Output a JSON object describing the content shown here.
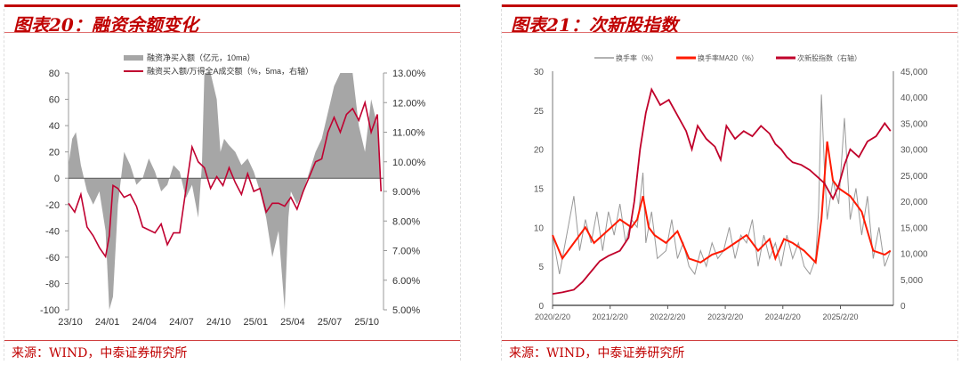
{
  "left": {
    "title": "图表20：融资余额变化",
    "source": "来源：WIND，中泰证券研究所"
  },
  "right": {
    "title": "图表21：次新股指数",
    "source": "来源：WIND，中泰证券研究所"
  },
  "chart_data": [
    {
      "type": "area+line",
      "title": "融资余额变化",
      "legend": [
        "融资净买入额（亿元，10ma）",
        "融资买入额/万得全A成交额（%，5ma，右轴）"
      ],
      "x_ticks": [
        "23/10",
        "24/01",
        "24/04",
        "24/07",
        "24/10",
        "25/01",
        "25/04",
        "25/07",
        "25/10"
      ],
      "x_tick_months": [
        0,
        3,
        6,
        9,
        12,
        15,
        18,
        21,
        24
      ],
      "y_left": {
        "range": [
          -100,
          80
        ],
        "ticks": [
          -100,
          -80,
          -60,
          -40,
          -20,
          0,
          20,
          40,
          60,
          80
        ]
      },
      "y_right": {
        "range": [
          5,
          13
        ],
        "ticks": [
          "5.00%",
          "6.00%",
          "7.00%",
          "8.00%",
          "9.00%",
          "10.00%",
          "11.00%",
          "12.00%",
          "13.00%"
        ]
      },
      "x_range_months": [
        0,
        25.5
      ],
      "series": [
        {
          "name": "融资净买入额（亿元，10ma）",
          "axis": "left",
          "color": "#a6a6a6",
          "x": [
            0,
            0.3,
            0.6,
            1,
            1.5,
            2,
            2.5,
            3,
            3.3,
            3.6,
            4,
            4.5,
            5,
            5.5,
            6,
            6.5,
            7,
            7.5,
            8,
            8.5,
            9,
            9.5,
            10,
            10.5,
            10.8,
            11,
            11.5,
            12,
            12.3,
            12.6,
            13,
            13.5,
            14,
            14.5,
            15,
            15.5,
            16,
            16.5,
            17,
            17.5,
            17.8,
            18,
            18.5,
            19,
            19.5,
            20,
            20.5,
            21,
            21.5,
            22,
            22.5,
            23,
            23.5,
            24,
            24.5,
            25,
            25.3
          ],
          "y": [
            10,
            30,
            35,
            10,
            -10,
            -20,
            -10,
            -40,
            -100,
            -90,
            -20,
            20,
            10,
            -5,
            0,
            15,
            5,
            -10,
            -5,
            10,
            5,
            -15,
            -5,
            -30,
            10,
            80,
            80,
            60,
            20,
            30,
            25,
            20,
            10,
            15,
            5,
            -10,
            -30,
            -60,
            -40,
            -100,
            -30,
            -10,
            -20,
            -10,
            5,
            20,
            30,
            50,
            70,
            80,
            80,
            80,
            40,
            20,
            60,
            40,
            -10
          ]
        },
        {
          "name": "融资买入额/万得全A成交额（%，5ma，右轴）",
          "axis": "right",
          "color": "#c00030",
          "x": [
            0,
            0.5,
            1,
            1.5,
            2,
            2.5,
            3,
            3.3,
            3.6,
            4,
            4.5,
            5,
            5.5,
            6,
            7,
            7.5,
            8,
            8.5,
            9,
            10,
            10.5,
            11,
            11.5,
            12,
            12.5,
            13,
            13.5,
            14,
            14.5,
            15,
            15.5,
            16,
            16.5,
            17,
            17.5,
            18,
            18.5,
            19,
            19.5,
            20,
            20.5,
            21,
            21.5,
            22,
            22.5,
            23,
            23.5,
            24,
            24.5,
            25,
            25.3
          ],
          "y": [
            8.6,
            8.3,
            8.9,
            7.8,
            7.5,
            7.1,
            6.8,
            7.5,
            9.2,
            9.1,
            8.8,
            8.9,
            8.5,
            7.8,
            7.6,
            7.9,
            7.2,
            7.6,
            7.6,
            10.5,
            10.0,
            9.8,
            9.1,
            9.5,
            9.2,
            9.8,
            9.3,
            8.9,
            9.6,
            9.0,
            9.1,
            8.3,
            8.6,
            8.6,
            8.5,
            8.8,
            8.4,
            9.0,
            9.5,
            10.0,
            10.1,
            11.0,
            11.5,
            11.0,
            11.6,
            11.8,
            11.4,
            12.0,
            11.0,
            11.6,
            9.0
          ]
        }
      ]
    },
    {
      "type": "line",
      "title": "次新股指数",
      "legend": [
        "换手率（%）",
        "换手率MA20（%）",
        "次新股指数（右轴）"
      ],
      "x_ticks": [
        "2020/2/20",
        "2021/2/20",
        "2022/2/20",
        "2023/2/20",
        "2024/2/20",
        "2025/2/20"
      ],
      "x_tick_years": [
        2020.13,
        2021.13,
        2022.13,
        2023.13,
        2024.13,
        2025.13
      ],
      "x_range": [
        2020.13,
        2026.05
      ],
      "y_left": {
        "range": [
          0,
          30
        ],
        "ticks": [
          "0",
          "5",
          "10",
          "15",
          "20",
          "25",
          "30"
        ]
      },
      "y_right": {
        "range": [
          0,
          45000
        ],
        "ticks": [
          "0",
          "5,000",
          "10,000",
          "15,000",
          "20,000",
          "25,000",
          "30,000",
          "35,000",
          "40,000",
          "45,000"
        ]
      },
      "series": [
        {
          "name": "换手率（%）",
          "axis": "left",
          "color": "#999999",
          "x": [
            2020.13,
            2020.25,
            2020.35,
            2020.5,
            2020.6,
            2020.7,
            2020.8,
            2020.9,
            2021.0,
            2021.1,
            2021.2,
            2021.3,
            2021.4,
            2021.5,
            2021.6,
            2021.7,
            2021.75,
            2021.85,
            2021.95,
            2022.1,
            2022.2,
            2022.3,
            2022.4,
            2022.5,
            2022.6,
            2022.7,
            2022.8,
            2022.9,
            2023.0,
            2023.1,
            2023.2,
            2023.3,
            2023.4,
            2023.5,
            2023.6,
            2023.7,
            2023.8,
            2023.9,
            2024.0,
            2024.1,
            2024.2,
            2024.3,
            2024.4,
            2024.5,
            2024.6,
            2024.7,
            2024.75,
            2024.8,
            2024.85,
            2024.9,
            2025.0,
            2025.1,
            2025.2,
            2025.3,
            2025.4,
            2025.5,
            2025.6,
            2025.7,
            2025.8,
            2025.9,
            2026.0
          ],
          "y": [
            9,
            4,
            8,
            14,
            7,
            11,
            8,
            12,
            7,
            12,
            9,
            13,
            8,
            11,
            10,
            17,
            8,
            12,
            6,
            7,
            11,
            6,
            8,
            5,
            4,
            7,
            5,
            8,
            6,
            7,
            10,
            6,
            9,
            8,
            11,
            5,
            9,
            6,
            8,
            5,
            9,
            6,
            8,
            5,
            4,
            6,
            12,
            27,
            18,
            11,
            16,
            13,
            24,
            11,
            15,
            9,
            14,
            6,
            10,
            5,
            7
          ]
        },
        {
          "name": "换手率MA20（%）",
          "axis": "left",
          "color": "#ff1a00",
          "x": [
            2020.13,
            2020.3,
            2020.5,
            2020.7,
            2020.85,
            2021.0,
            2021.15,
            2021.3,
            2021.5,
            2021.6,
            2021.7,
            2021.8,
            2021.9,
            2022.1,
            2022.3,
            2022.5,
            2022.7,
            2022.9,
            2023.1,
            2023.3,
            2023.5,
            2023.7,
            2023.9,
            2024.0,
            2024.15,
            2024.3,
            2024.5,
            2024.7,
            2024.8,
            2024.9,
            2025.0,
            2025.1,
            2025.3,
            2025.5,
            2025.7,
            2025.9,
            2026.0
          ],
          "y": [
            9,
            6,
            8,
            10,
            8,
            9,
            10,
            11,
            10,
            11,
            14,
            10,
            9,
            8,
            9.5,
            6,
            5.5,
            6.5,
            7,
            8,
            9,
            7,
            8.5,
            6,
            8.5,
            8,
            7,
            5.5,
            11,
            21,
            16,
            15,
            14,
            12,
            7,
            6.5,
            7
          ]
        },
        {
          "name": "次新股指数（右轴）",
          "axis": "right",
          "color": "#c0002a",
          "x": [
            2020.13,
            2020.3,
            2020.5,
            2020.65,
            2020.8,
            2020.95,
            2021.1,
            2021.3,
            2021.45,
            2021.55,
            2021.65,
            2021.75,
            2021.85,
            2022.0,
            2022.15,
            2022.3,
            2022.45,
            2022.55,
            2022.65,
            2022.8,
            2022.95,
            2023.05,
            2023.15,
            2023.3,
            2023.45,
            2023.6,
            2023.75,
            2023.9,
            2024.0,
            2024.1,
            2024.2,
            2024.3,
            2024.45,
            2024.6,
            2024.75,
            2024.85,
            2025.0,
            2025.1,
            2025.2,
            2025.3,
            2025.45,
            2025.6,
            2025.75,
            2025.9,
            2026.0
          ],
          "y": [
            2200,
            2500,
            3000,
            4500,
            6500,
            8500,
            9500,
            10500,
            13000,
            20000,
            30000,
            37000,
            41500,
            38500,
            39500,
            36500,
            33500,
            30000,
            34500,
            32000,
            30500,
            28000,
            34500,
            32000,
            33500,
            32500,
            34500,
            33000,
            31000,
            30000,
            28500,
            27500,
            27000,
            26000,
            24500,
            23500,
            20500,
            23000,
            27000,
            30000,
            28500,
            31500,
            32500,
            35000,
            33500
          ]
        }
      ]
    }
  ]
}
